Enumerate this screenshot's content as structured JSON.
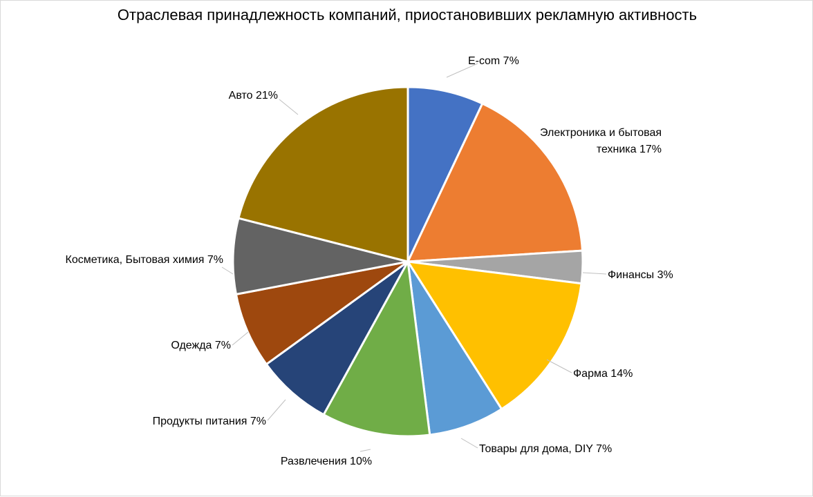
{
  "chart_data": {
    "type": "pie",
    "title": "Отраслевая принадлежность компаний, приостановивших рекламную активность",
    "slices": [
      {
        "label": "E-com",
        "value": 7,
        "value_label": "7%",
        "color": "#4472C4"
      },
      {
        "label": "Электроника и бытовая техника",
        "value": 17,
        "value_label": "17%",
        "color": "#ED7D31"
      },
      {
        "label": "Финансы",
        "value": 3,
        "value_label": "3%",
        "color": "#A5A5A5"
      },
      {
        "label": "Фарма",
        "value": 14,
        "value_label": "14%",
        "color": "#FFC000"
      },
      {
        "label": "Товары для дома, DIY",
        "value": 7,
        "value_label": "7%",
        "color": "#5B9BD5"
      },
      {
        "label": "Развлечения",
        "value": 10,
        "value_label": "10%",
        "color": "#70AD47"
      },
      {
        "label": "Продукты питания",
        "value": 7,
        "value_label": "7%",
        "color": "#264478"
      },
      {
        "label": "Одежда",
        "value": 7,
        "value_label": "7%",
        "color": "#9E480E"
      },
      {
        "label": "Косметика, Бытовая химия",
        "value": 7,
        "value_label": "7%",
        "color": "#636363"
      },
      {
        "label": "Авто",
        "value": 21,
        "value_label": "21%",
        "color": "#997300"
      }
    ]
  }
}
